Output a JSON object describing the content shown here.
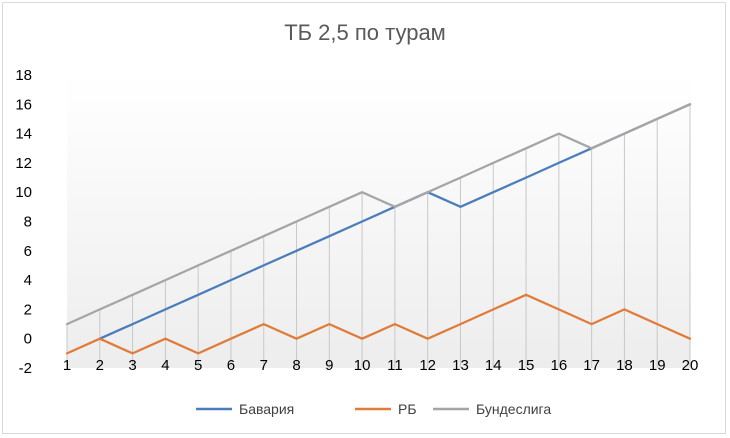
{
  "chart_data": {
    "type": "line",
    "title": "ТБ 2,5 по турам",
    "xlabel": "",
    "ylabel": "",
    "categories": [
      "1",
      "2",
      "3",
      "4",
      "5",
      "6",
      "7",
      "8",
      "9",
      "10",
      "11",
      "12",
      "13",
      "14",
      "15",
      "16",
      "17",
      "18",
      "19",
      "20"
    ],
    "ylim": [
      -2,
      18
    ],
    "yticks": [
      "18",
      "16",
      "14",
      "12",
      "10",
      "8",
      "6",
      "4",
      "2",
      "0",
      "-2"
    ],
    "grid": "vertical drop lines",
    "legend_position": "bottom",
    "series": [
      {
        "name": "Бавария",
        "color": "#4a7ebb",
        "values": [
          null,
          0,
          1,
          2,
          3,
          4,
          5,
          6,
          7,
          8,
          9,
          10,
          9,
          10,
          11,
          12,
          13,
          14,
          15,
          16
        ]
      },
      {
        "name": "РБ",
        "color": "#e07b39",
        "values": [
          -1,
          0,
          -1,
          0,
          -1,
          0,
          1,
          0,
          1,
          0,
          1,
          0,
          1,
          2,
          3,
          2,
          1,
          2,
          1,
          0
        ]
      },
      {
        "name": "Бундеслига",
        "color": "#a5a5a5",
        "values": [
          1,
          2,
          3,
          4,
          5,
          6,
          7,
          8,
          9,
          10,
          9,
          10,
          11,
          12,
          13,
          14,
          13,
          14,
          15,
          16
        ]
      }
    ]
  }
}
